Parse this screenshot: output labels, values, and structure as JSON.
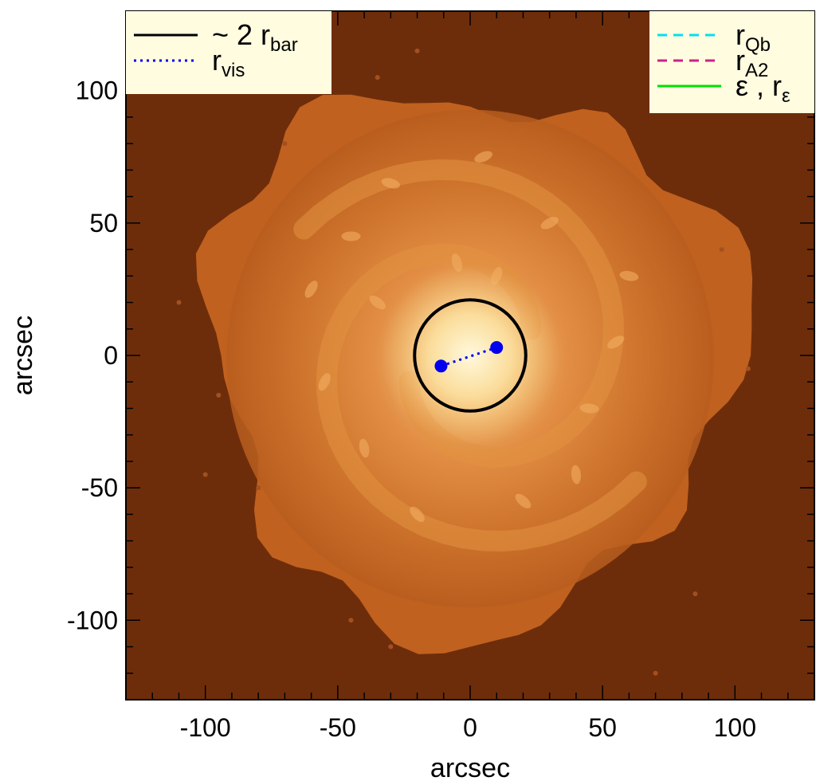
{
  "chart_data": {
    "type": "image",
    "xlabel": "arcsec",
    "ylabel": "arcsec",
    "xlim": [
      -130,
      130
    ],
    "ylim": [
      -130,
      130
    ],
    "x_ticks": [
      -100,
      -50,
      0,
      50,
      100
    ],
    "y_ticks": [
      -100,
      -50,
      0,
      50,
      100
    ],
    "x_tick_labels": [
      "-100",
      "-50",
      "0",
      "50",
      "100"
    ],
    "y_tick_labels": [
      "-100",
      "-50",
      "0",
      "50",
      "100"
    ],
    "colors": {
      "background": "#6e2d0a",
      "galaxy_outer": "#c0611f",
      "galaxy_mid": "#e2913f",
      "galaxy_core": "#fff0bf",
      "legend_box": "#fffce0",
      "bar_circle": "#000000",
      "r_vis": "#0000ee",
      "r_Qb": "#00e0f0",
      "r_A2": "#cc2288",
      "epsilon": "#00e000"
    },
    "bar_circle": {
      "center": [
        0,
        0
      ],
      "radius": 21
    },
    "r_vis_segment": {
      "x": [
        -11,
        10
      ],
      "y": [
        -4,
        3
      ]
    },
    "legend_left": {
      "position": "top-left",
      "entries": [
        {
          "prefix": "~ 2 r",
          "sub": "bar",
          "line": "solid",
          "color": "#000000"
        },
        {
          "prefix": "r",
          "sub": "vis",
          "line": "dotted",
          "color": "#0000ee"
        }
      ]
    },
    "legend_right": {
      "position": "top-right",
      "entries": [
        {
          "prefix": "r",
          "sub": "Qb",
          "line": "dashed",
          "color": "#00e0f0"
        },
        {
          "prefix": "r",
          "sub": "A2",
          "line": "dashed",
          "color": "#cc2288"
        },
        {
          "prefix": "ε , r",
          "sub": "ε",
          "line": "solid",
          "color": "#00e000"
        }
      ]
    }
  }
}
